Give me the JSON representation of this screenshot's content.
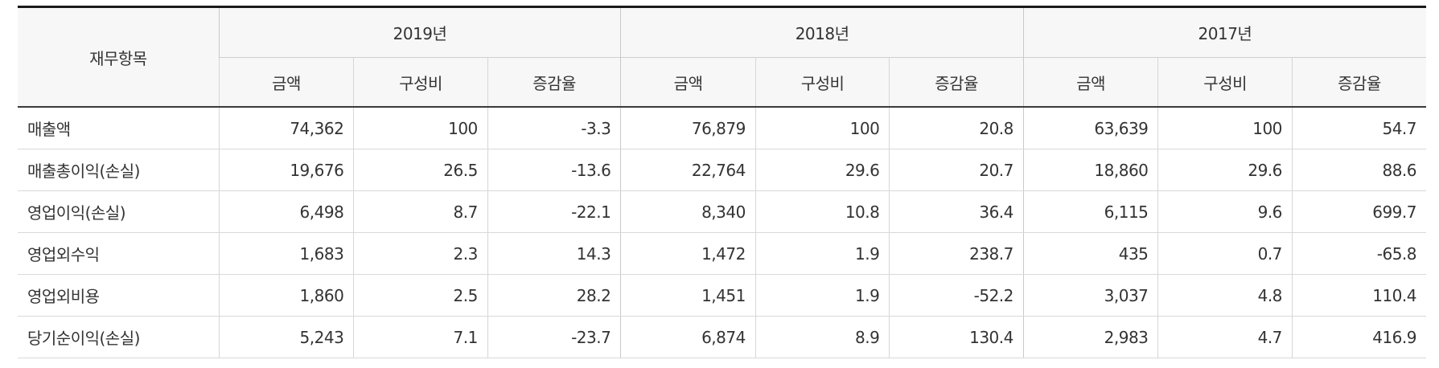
{
  "table": {
    "item_header": "재무항목",
    "years": [
      "2019년",
      "2018년",
      "2017년"
    ],
    "sub_headers": [
      "금액",
      "구성비",
      "증감율"
    ],
    "rows": [
      {
        "label": "매출액",
        "values": [
          "74,362",
          "100",
          "-3.3",
          "76,879",
          "100",
          "20.8",
          "63,639",
          "100",
          "54.7"
        ]
      },
      {
        "label": "매출총이익(손실)",
        "values": [
          "19,676",
          "26.5",
          "-13.6",
          "22,764",
          "29.6",
          "20.7",
          "18,860",
          "29.6",
          "88.6"
        ]
      },
      {
        "label": "영업이익(손실)",
        "values": [
          "6,498",
          "8.7",
          "-22.1",
          "8,340",
          "10.8",
          "36.4",
          "6,115",
          "9.6",
          "699.7"
        ]
      },
      {
        "label": "영업외수익",
        "values": [
          "1,683",
          "2.3",
          "14.3",
          "1,472",
          "1.9",
          "238.7",
          "435",
          "0.7",
          "-65.8"
        ]
      },
      {
        "label": "영업외비용",
        "values": [
          "1,860",
          "2.5",
          "28.2",
          "1,451",
          "1.9",
          "-52.2",
          "3,037",
          "4.8",
          "110.4"
        ]
      },
      {
        "label": "당기순이익(손실)",
        "values": [
          "5,243",
          "7.1",
          "-23.7",
          "6,874",
          "8.9",
          "130.4",
          "2,983",
          "4.7",
          "416.9"
        ]
      }
    ]
  }
}
